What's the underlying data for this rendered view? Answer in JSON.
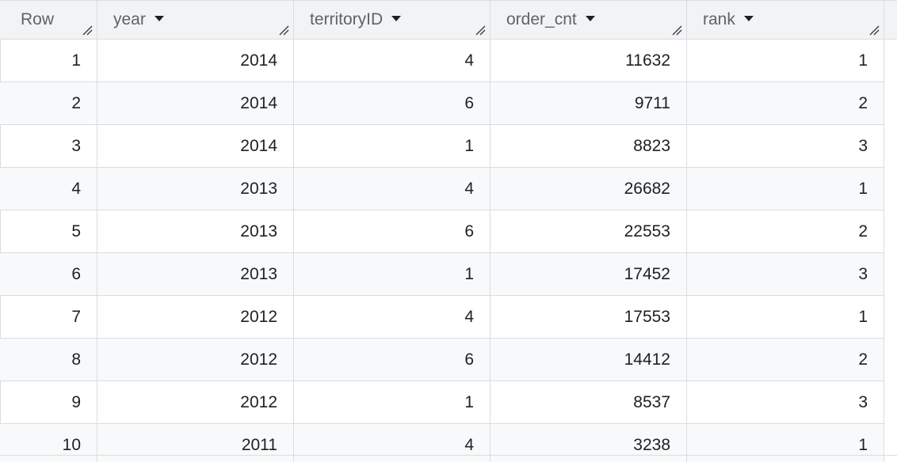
{
  "table": {
    "columns": [
      {
        "key": "row",
        "label": "Row",
        "sortable": false
      },
      {
        "key": "year",
        "label": "year",
        "sortable": true
      },
      {
        "key": "territoryID",
        "label": "territoryID",
        "sortable": true
      },
      {
        "key": "order_cnt",
        "label": "order_cnt",
        "sortable": true
      },
      {
        "key": "rank",
        "label": "rank",
        "sortable": true
      }
    ],
    "rows": [
      {
        "row": "1",
        "year": "2014",
        "territoryID": "4",
        "order_cnt": "11632",
        "rank": "1"
      },
      {
        "row": "2",
        "year": "2014",
        "territoryID": "6",
        "order_cnt": "9711",
        "rank": "2"
      },
      {
        "row": "3",
        "year": "2014",
        "territoryID": "1",
        "order_cnt": "8823",
        "rank": "3"
      },
      {
        "row": "4",
        "year": "2013",
        "territoryID": "4",
        "order_cnt": "26682",
        "rank": "1"
      },
      {
        "row": "5",
        "year": "2013",
        "territoryID": "6",
        "order_cnt": "22553",
        "rank": "2"
      },
      {
        "row": "6",
        "year": "2013",
        "territoryID": "1",
        "order_cnt": "17452",
        "rank": "3"
      },
      {
        "row": "7",
        "year": "2012",
        "territoryID": "4",
        "order_cnt": "17553",
        "rank": "1"
      },
      {
        "row": "8",
        "year": "2012",
        "territoryID": "6",
        "order_cnt": "14412",
        "rank": "2"
      },
      {
        "row": "9",
        "year": "2012",
        "territoryID": "1",
        "order_cnt": "8537",
        "rank": "3"
      },
      {
        "row": "10",
        "year": "2011",
        "territoryID": "4",
        "order_cnt": "3238",
        "rank": "1"
      }
    ],
    "icons": {
      "sort": "sort-dropdown-icon",
      "resize": "column-resize-icon"
    },
    "colors": {
      "header_bg": "#f1f3f4",
      "alt_row_bg": "#f8f9fa",
      "grid_line": "#dadce0",
      "header_text": "#5f6368",
      "cell_text": "#202124"
    }
  }
}
